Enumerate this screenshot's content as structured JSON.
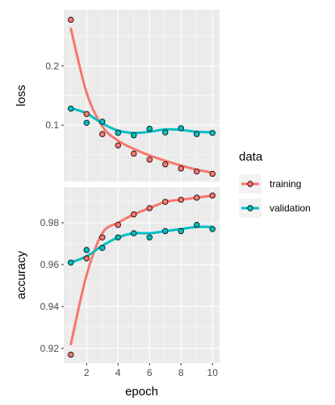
{
  "chart_data": {
    "type": "scatter",
    "facets": [
      {
        "ylabel": "loss",
        "ylim": [
          0.005,
          0.295
        ],
        "yticks": [
          0.1,
          0.2
        ],
        "ytick_labels": [
          "0.1",
          "0.2"
        ],
        "series": [
          {
            "name": "training",
            "points": [
              0.278,
              0.119,
              0.085,
              0.066,
              0.052,
              0.042,
              0.034,
              0.027,
              0.022,
              0.018
            ],
            "smooth": [
              0.263,
              0.155,
              0.098,
              0.074,
              0.06,
              0.049,
              0.04,
              0.032,
              0.025,
              0.02
            ]
          },
          {
            "name": "validation",
            "points": [
              0.128,
              0.104,
              0.106,
              0.087,
              0.083,
              0.094,
              0.088,
              0.095,
              0.085,
              0.087
            ],
            "smooth": [
              0.129,
              0.12,
              0.103,
              0.091,
              0.087,
              0.089,
              0.093,
              0.092,
              0.089,
              0.088
            ]
          }
        ]
      },
      {
        "ylabel": "accuracy",
        "ylim": [
          0.913,
          0.997
        ],
        "yticks": [
          0.92,
          0.94,
          0.96,
          0.98
        ],
        "ytick_labels": [
          "0.92",
          "0.94",
          "0.96",
          "0.98"
        ],
        "series": [
          {
            "name": "training",
            "points": [
              0.917,
              0.963,
              0.973,
              0.979,
              0.984,
              0.987,
              0.99,
              0.991,
              0.992,
              0.993
            ],
            "smooth": [
              0.922,
              0.955,
              0.975,
              0.98,
              0.984,
              0.987,
              0.99,
              0.991,
              0.992,
              0.993
            ]
          },
          {
            "name": "validation",
            "points": [
              0.961,
              0.967,
              0.968,
              0.973,
              0.975,
              0.973,
              0.976,
              0.976,
              0.979,
              0.977
            ],
            "smooth": [
              0.961,
              0.964,
              0.969,
              0.973,
              0.975,
              0.975,
              0.976,
              0.977,
              0.978,
              0.978
            ]
          }
        ]
      }
    ],
    "x": [
      1,
      2,
      3,
      4,
      5,
      6,
      7,
      8,
      9,
      10
    ],
    "xlim": [
      0.55,
      10.45
    ],
    "xticks": [
      2,
      4,
      6,
      8,
      10
    ],
    "xtick_labels": [
      "2",
      "4",
      "6",
      "8",
      "10"
    ],
    "xlabel": "epoch",
    "legend": {
      "title": "data",
      "placement": "right",
      "entries": [
        "training",
        "validation"
      ]
    },
    "grid": true,
    "colors": {
      "training": "#F8766D",
      "validation": "#00BFC4",
      "panel_bg": "#EBEBEB",
      "grid": "#FFFFFF"
    }
  }
}
